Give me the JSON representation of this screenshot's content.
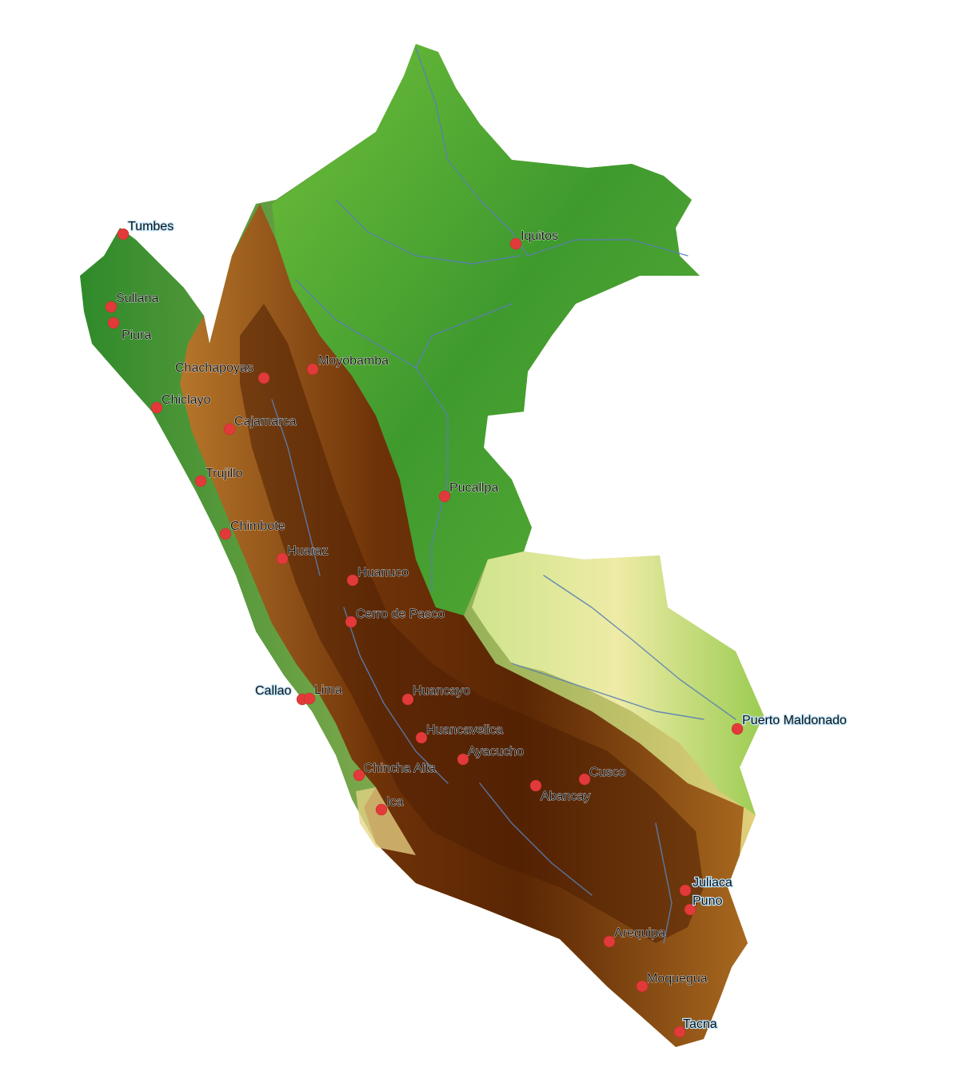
{
  "map": {
    "colors": {
      "lowland_green": "#3f9a2e",
      "lowland_light": "#8cc63f",
      "plains_yellow": "#e9e79a",
      "foothill_tan": "#d9b565",
      "highland_brown": "#7a3b0a",
      "peak_dark": "#4a1d02",
      "river": "#5a7fb4",
      "city_dot": "#e23a3a"
    },
    "cities": [
      {
        "name": "Tumbes"
      },
      {
        "name": "Sullana"
      },
      {
        "name": "Piura"
      },
      {
        "name": "Chachapoyas"
      },
      {
        "name": "Moyobamba"
      },
      {
        "name": "Chiclayo"
      },
      {
        "name": "Cajamarca"
      },
      {
        "name": "Trujillo"
      },
      {
        "name": "Chimbote"
      },
      {
        "name": "Huaraz"
      },
      {
        "name": "Huanuco"
      },
      {
        "name": "Cerro de Pasco"
      },
      {
        "name": "Iquitos"
      },
      {
        "name": "Pucallpa"
      },
      {
        "name": "Callao"
      },
      {
        "name": "Lima"
      },
      {
        "name": "Huancayo"
      },
      {
        "name": "Huancavelica"
      },
      {
        "name": "Ayacucho"
      },
      {
        "name": "Chincha Alta"
      },
      {
        "name": "Ica"
      },
      {
        "name": "Abancay"
      },
      {
        "name": "Cusco"
      },
      {
        "name": "Puerto Maldonado"
      },
      {
        "name": "Juliaca"
      },
      {
        "name": "Puno"
      },
      {
        "name": "Arequipa"
      },
      {
        "name": "Moquegua"
      },
      {
        "name": "Tacna"
      }
    ]
  }
}
